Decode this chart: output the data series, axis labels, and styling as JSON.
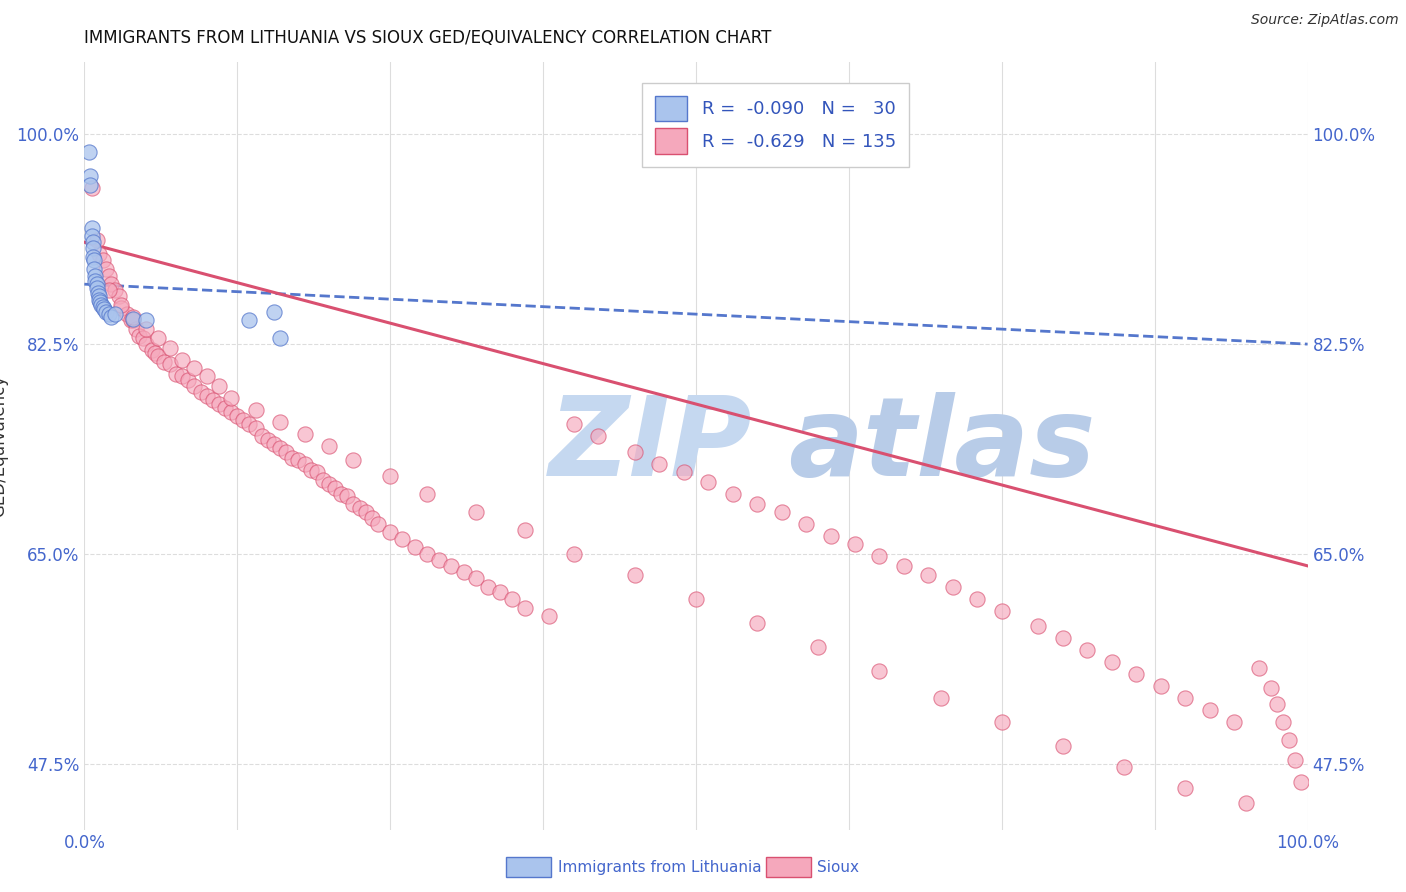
{
  "title": "IMMIGRANTS FROM LITHUANIA VS SIOUX GED/EQUIVALENCY CORRELATION CHART",
  "source": "Source: ZipAtlas.com",
  "ylabel": "GED/Equivalency",
  "xlim": [
    0.0,
    1.0
  ],
  "ylim": [
    0.42,
    1.06
  ],
  "yticks": [
    0.475,
    0.65,
    0.825,
    1.0
  ],
  "ytick_labels": [
    "47.5%",
    "65.0%",
    "82.5%",
    "100.0%"
  ],
  "xticks": [
    0.0,
    0.125,
    0.25,
    0.375,
    0.5,
    0.625,
    0.75,
    0.875,
    1.0
  ],
  "xtick_labels": [
    "0.0%",
    "",
    "",
    "",
    "",
    "",
    "",
    "",
    "100.0%"
  ],
  "blue_scatter_x": [
    0.004,
    0.005,
    0.005,
    0.006,
    0.006,
    0.007,
    0.007,
    0.007,
    0.008,
    0.008,
    0.009,
    0.009,
    0.01,
    0.01,
    0.011,
    0.012,
    0.012,
    0.013,
    0.014,
    0.015,
    0.016,
    0.018,
    0.02,
    0.022,
    0.025,
    0.04,
    0.05,
    0.135,
    0.155,
    0.16
  ],
  "blue_scatter_y": [
    0.985,
    0.965,
    0.958,
    0.922,
    0.915,
    0.91,
    0.905,
    0.898,
    0.895,
    0.888,
    0.882,
    0.878,
    0.875,
    0.872,
    0.868,
    0.865,
    0.862,
    0.86,
    0.858,
    0.856,
    0.854,
    0.852,
    0.85,
    0.848,
    0.85,
    0.846,
    0.845,
    0.845,
    0.852,
    0.83
  ],
  "pink_scatter_x": [
    0.006,
    0.01,
    0.012,
    0.015,
    0.018,
    0.02,
    0.022,
    0.025,
    0.028,
    0.03,
    0.035,
    0.038,
    0.04,
    0.042,
    0.045,
    0.048,
    0.05,
    0.055,
    0.058,
    0.06,
    0.065,
    0.07,
    0.075,
    0.08,
    0.085,
    0.09,
    0.095,
    0.1,
    0.105,
    0.11,
    0.115,
    0.12,
    0.125,
    0.13,
    0.135,
    0.14,
    0.145,
    0.15,
    0.155,
    0.16,
    0.165,
    0.17,
    0.175,
    0.18,
    0.185,
    0.19,
    0.195,
    0.2,
    0.205,
    0.21,
    0.215,
    0.22,
    0.225,
    0.23,
    0.235,
    0.24,
    0.25,
    0.26,
    0.27,
    0.28,
    0.29,
    0.3,
    0.31,
    0.32,
    0.33,
    0.34,
    0.35,
    0.36,
    0.38,
    0.4,
    0.42,
    0.45,
    0.47,
    0.49,
    0.51,
    0.53,
    0.55,
    0.57,
    0.59,
    0.61,
    0.63,
    0.65,
    0.67,
    0.69,
    0.71,
    0.73,
    0.75,
    0.78,
    0.8,
    0.82,
    0.84,
    0.86,
    0.88,
    0.9,
    0.92,
    0.94,
    0.02,
    0.03,
    0.04,
    0.05,
    0.06,
    0.07,
    0.08,
    0.09,
    0.1,
    0.11,
    0.12,
    0.14,
    0.16,
    0.18,
    0.2,
    0.22,
    0.25,
    0.28,
    0.32,
    0.36,
    0.4,
    0.45,
    0.5,
    0.55,
    0.6,
    0.65,
    0.7,
    0.75,
    0.8,
    0.85,
    0.9,
    0.95,
    0.96,
    0.97,
    0.975,
    0.98,
    0.985,
    0.99,
    0.995
  ],
  "pink_scatter_y": [
    0.955,
    0.912,
    0.9,
    0.895,
    0.888,
    0.882,
    0.875,
    0.87,
    0.865,
    0.855,
    0.85,
    0.845,
    0.845,
    0.838,
    0.832,
    0.83,
    0.825,
    0.82,
    0.818,
    0.815,
    0.81,
    0.808,
    0.8,
    0.798,
    0.795,
    0.79,
    0.785,
    0.782,
    0.778,
    0.775,
    0.772,
    0.768,
    0.765,
    0.762,
    0.758,
    0.755,
    0.748,
    0.745,
    0.742,
    0.738,
    0.735,
    0.73,
    0.728,
    0.725,
    0.72,
    0.718,
    0.712,
    0.708,
    0.705,
    0.7,
    0.698,
    0.692,
    0.688,
    0.685,
    0.68,
    0.675,
    0.668,
    0.662,
    0.656,
    0.65,
    0.645,
    0.64,
    0.635,
    0.63,
    0.622,
    0.618,
    0.612,
    0.605,
    0.598,
    0.758,
    0.748,
    0.735,
    0.725,
    0.718,
    0.71,
    0.7,
    0.692,
    0.685,
    0.675,
    0.665,
    0.658,
    0.648,
    0.64,
    0.632,
    0.622,
    0.612,
    0.602,
    0.59,
    0.58,
    0.57,
    0.56,
    0.55,
    0.54,
    0.53,
    0.52,
    0.51,
    0.87,
    0.858,
    0.848,
    0.838,
    0.83,
    0.822,
    0.812,
    0.805,
    0.798,
    0.79,
    0.78,
    0.77,
    0.76,
    0.75,
    0.74,
    0.728,
    0.715,
    0.7,
    0.685,
    0.67,
    0.65,
    0.632,
    0.612,
    0.592,
    0.572,
    0.552,
    0.53,
    0.51,
    0.49,
    0.472,
    0.455,
    0.442,
    0.555,
    0.538,
    0.525,
    0.51,
    0.495,
    0.478,
    0.46
  ],
  "blue_line_x": [
    0.0,
    1.0
  ],
  "blue_line_y": [
    0.875,
    0.825
  ],
  "pink_line_x": [
    0.0,
    1.0
  ],
  "pink_line_y": [
    0.91,
    0.64
  ],
  "scatter_size": 120,
  "blue_color": "#aac4ed",
  "pink_color": "#f5a8bc",
  "blue_line_color": "#5577cc",
  "pink_line_color": "#d95070",
  "grid_color": "#dddddd",
  "legend_r1": "-0.090",
  "legend_n1": "30",
  "legend_r2": "-0.629",
  "legend_n2": "135"
}
